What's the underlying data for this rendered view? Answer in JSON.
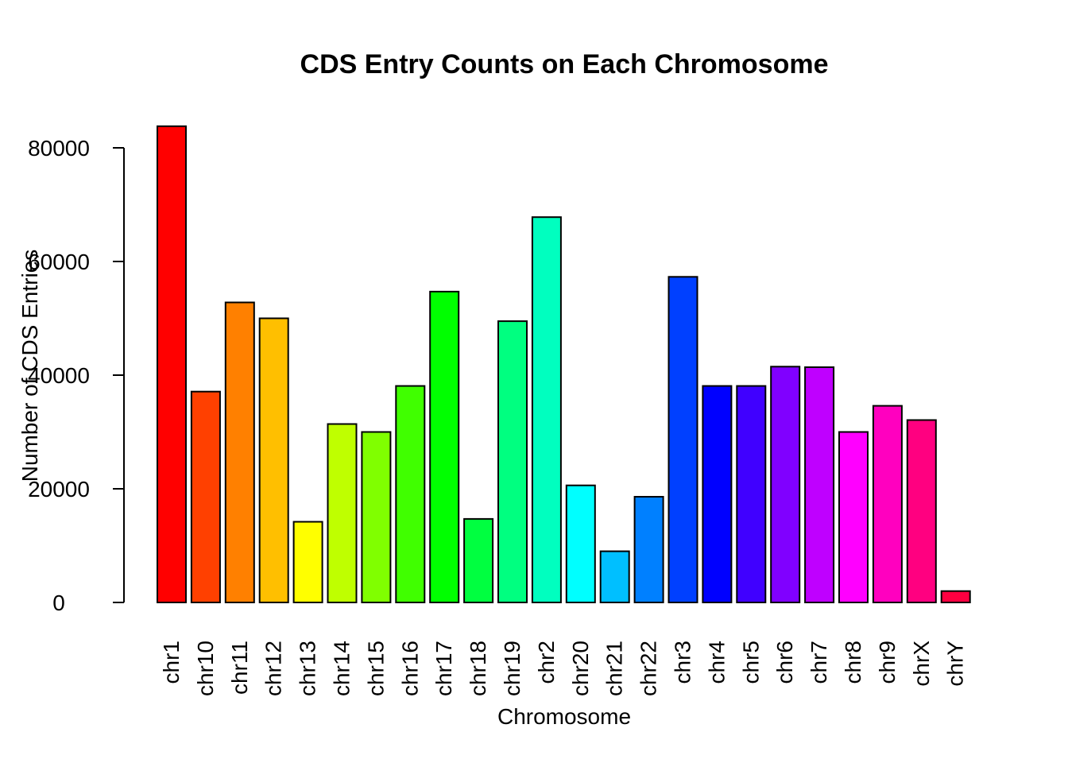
{
  "chart_data": {
    "type": "bar",
    "title": "CDS Entry Counts on Each Chromosome",
    "xlabel": "Chromosome",
    "ylabel": "Number of CDS Entries",
    "ylim": [
      0,
      85000
    ],
    "yticks": [
      0,
      20000,
      40000,
      60000,
      80000
    ],
    "grid": false,
    "legend": "none",
    "categories": [
      "chr1",
      "chr10",
      "chr11",
      "chr12",
      "chr13",
      "chr14",
      "chr15",
      "chr16",
      "chr17",
      "chr18",
      "chr19",
      "chr2",
      "chr20",
      "chr21",
      "chr22",
      "chr3",
      "chr4",
      "chr5",
      "chr6",
      "chr7",
      "chr8",
      "chr9",
      "chrX",
      "chrY"
    ],
    "values": [
      83800,
      37100,
      52800,
      50000,
      14200,
      31400,
      30000,
      38100,
      54700,
      14700,
      49500,
      67800,
      20600,
      9000,
      18600,
      57300,
      38100,
      38100,
      41500,
      41400,
      30000,
      34600,
      32100,
      2000
    ],
    "colors": [
      "#FF0000",
      "#FF4000",
      "#FF8000",
      "#FFBF00",
      "#FFFF00",
      "#BFFF00",
      "#80FF00",
      "#40FF00",
      "#00FF00",
      "#00FF40",
      "#00FF80",
      "#00FFBF",
      "#00FFFF",
      "#00BFFF",
      "#0080FF",
      "#0040FF",
      "#0000FF",
      "#4000FF",
      "#8000FF",
      "#BF00FF",
      "#FF00FF",
      "#FF00BF",
      "#FF0080",
      "#FF0040"
    ]
  }
}
